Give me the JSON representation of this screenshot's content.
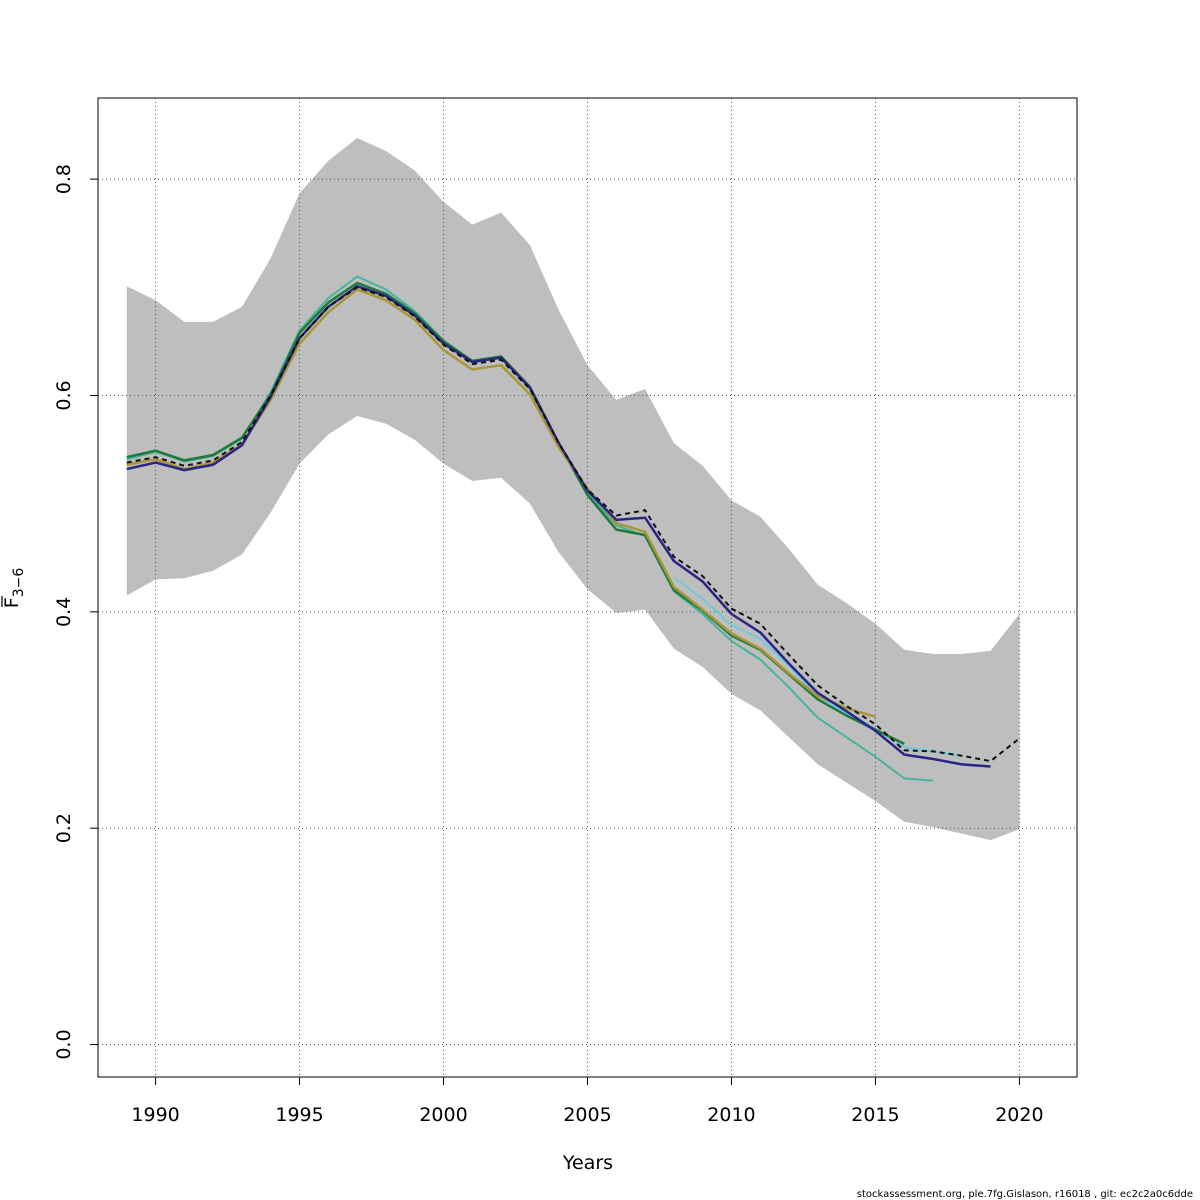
{
  "chart_data": {
    "type": "line",
    "xlabel": "Years",
    "ylabel_base": "F",
    "ylabel_sub": "3−6",
    "xlim": [
      1988,
      2022
    ],
    "ylim": [
      -0.03,
      0.875
    ],
    "x_ticks": [
      1990,
      1995,
      2000,
      2005,
      2010,
      2015,
      2020
    ],
    "y_ticks": [
      0.0,
      0.2,
      0.4,
      0.6,
      0.8
    ],
    "x_tick_labels": [
      "1990",
      "1995",
      "2000",
      "2005",
      "2010",
      "2015",
      "2020"
    ],
    "y_tick_labels": [
      "0.0",
      "0.2",
      "0.4",
      "0.6",
      "0.8"
    ],
    "grid": true,
    "confidence_band": {
      "x": [
        1989,
        1990,
        1991,
        1992,
        1993,
        1994,
        1995,
        1996,
        1997,
        1998,
        1999,
        2000,
        2001,
        2002,
        2003,
        2004,
        2005,
        2006,
        2007,
        2008,
        2009,
        2010,
        2011,
        2012,
        2013,
        2014,
        2015,
        2016,
        2017,
        2018,
        2019,
        2020
      ],
      "upper": [
        0.701,
        0.688,
        0.668,
        0.668,
        0.682,
        0.727,
        0.787,
        0.817,
        0.838,
        0.826,
        0.808,
        0.779,
        0.758,
        0.769,
        0.739,
        0.679,
        0.628,
        0.596,
        0.606,
        0.556,
        0.535,
        0.503,
        0.488,
        0.458,
        0.425,
        0.408,
        0.389,
        0.365,
        0.361,
        0.361,
        0.364,
        0.398
      ],
      "lower": [
        0.415,
        0.43,
        0.431,
        0.438,
        0.453,
        0.492,
        0.537,
        0.564,
        0.581,
        0.574,
        0.559,
        0.537,
        0.521,
        0.524,
        0.5,
        0.455,
        0.421,
        0.399,
        0.402,
        0.366,
        0.349,
        0.324,
        0.309,
        0.284,
        0.259,
        0.242,
        0.225,
        0.206,
        0.201,
        0.195,
        0.189,
        0.199
      ],
      "color": "#bebebe"
    },
    "series": [
      {
        "color": "#45b39d",
        "width": 2,
        "dash": "",
        "x": [
          1989,
          1990,
          1991,
          1992,
          1993,
          1994,
          1995,
          1996,
          1997,
          1998,
          1999,
          2000,
          2001,
          2002,
          2003,
          2004,
          2005,
          2006,
          2007,
          2008,
          2009,
          2010,
          2011,
          2012,
          2013,
          2014,
          2015,
          2016,
          2017
        ],
        "y": [
          0.541,
          0.548,
          0.539,
          0.544,
          0.56,
          0.603,
          0.66,
          0.69,
          0.71,
          0.698,
          0.678,
          0.651,
          0.632,
          0.635,
          0.607,
          0.556,
          0.51,
          0.48,
          0.47,
          0.419,
          0.398,
          0.373,
          0.356,
          0.33,
          0.302,
          0.284,
          0.266,
          0.246,
          0.244
        ]
      },
      {
        "color": "#6fcae0",
        "width": 2,
        "dash": "",
        "x": [
          2008,
          2009,
          2010,
          2011,
          2012,
          2013,
          2014,
          2015,
          2016,
          2017,
          2018
        ],
        "y": [
          0.432,
          0.412,
          0.388,
          0.375,
          0.35,
          0.322,
          0.306,
          0.292,
          0.275,
          0.271,
          0.267
        ]
      },
      {
        "color": "#1f7a3a",
        "width": 2.5,
        "dash": "",
        "x": [
          1989,
          1990,
          1991,
          1992,
          1993,
          1994,
          1995,
          1996,
          1997,
          1998,
          1999,
          2000,
          2001,
          2002,
          2003,
          2004,
          2005,
          2006,
          2007,
          2008,
          2009,
          2010,
          2011,
          2012,
          2013,
          2014,
          2015,
          2016
        ],
        "y": [
          0.543,
          0.549,
          0.54,
          0.545,
          0.561,
          0.601,
          0.658,
          0.686,
          0.704,
          0.694,
          0.676,
          0.65,
          0.632,
          0.636,
          0.608,
          0.556,
          0.508,
          0.476,
          0.471,
          0.42,
          0.401,
          0.378,
          0.365,
          0.342,
          0.319,
          0.304,
          0.291,
          0.278
        ]
      },
      {
        "color": "#a89538",
        "width": 2.5,
        "dash": "",
        "x": [
          1989,
          1990,
          1991,
          1992,
          1993,
          1994,
          1995,
          1996,
          1997,
          1998,
          1999,
          2000,
          2001,
          2002,
          2003,
          2004,
          2005,
          2006,
          2007,
          2008,
          2009,
          2010,
          2011,
          2012,
          2013,
          2014,
          2015
        ],
        "y": [
          0.536,
          0.541,
          0.532,
          0.538,
          0.555,
          0.596,
          0.648,
          0.677,
          0.698,
          0.688,
          0.67,
          0.642,
          0.624,
          0.628,
          0.601,
          0.552,
          0.514,
          0.482,
          0.474,
          0.423,
          0.402,
          0.38,
          0.366,
          0.343,
          0.322,
          0.311,
          0.303
        ]
      },
      {
        "color": "#2a2484",
        "width": 2.5,
        "dash": "",
        "x": [
          1989,
          1990,
          1991,
          1992,
          1993,
          1994,
          1995,
          1996,
          1997,
          1998,
          1999,
          2000,
          2001,
          2002,
          2003,
          2004,
          2005,
          2006,
          2007,
          2008,
          2009,
          2010,
          2011,
          2012,
          2013,
          2014,
          2015,
          2016,
          2017,
          2018,
          2019
        ],
        "y": [
          0.532,
          0.538,
          0.531,
          0.536,
          0.554,
          0.599,
          0.653,
          0.682,
          0.701,
          0.692,
          0.674,
          0.648,
          0.631,
          0.635,
          0.607,
          0.556,
          0.512,
          0.485,
          0.487,
          0.447,
          0.428,
          0.398,
          0.381,
          0.352,
          0.325,
          0.308,
          0.29,
          0.268,
          0.264,
          0.259,
          0.257
        ]
      },
      {
        "color": "#111111",
        "width": 2,
        "dash": "5,4",
        "x": [
          1989,
          1990,
          1991,
          1992,
          1993,
          1994,
          1995,
          1996,
          1997,
          1998,
          1999,
          2000,
          2001,
          2002,
          2003,
          2004,
          2005,
          2006,
          2007,
          2008,
          2009,
          2010,
          2011,
          2012,
          2013,
          2014,
          2015,
          2016,
          2017,
          2018,
          2019,
          2020
        ],
        "y": [
          0.538,
          0.543,
          0.535,
          0.54,
          0.557,
          0.6,
          0.653,
          0.682,
          0.7,
          0.691,
          0.673,
          0.647,
          0.629,
          0.633,
          0.606,
          0.556,
          0.513,
          0.489,
          0.494,
          0.451,
          0.433,
          0.403,
          0.389,
          0.36,
          0.332,
          0.313,
          0.296,
          0.272,
          0.271,
          0.267,
          0.262,
          0.283
        ]
      }
    ]
  },
  "footer_text": "stockassessment.org, ple.7fg.Gislason, r16018 , git: ec2c2a0c6dde"
}
